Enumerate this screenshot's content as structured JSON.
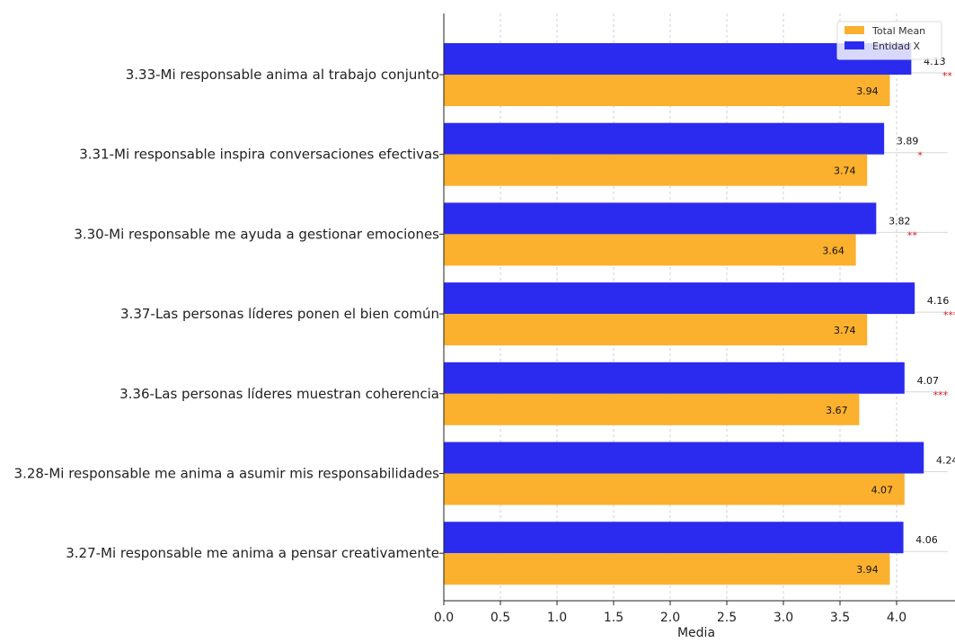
{
  "chart_data": {
    "type": "bar",
    "orientation": "horizontal",
    "xlabel": "Media",
    "ylabel": "",
    "xlim": [
      0,
      4.45
    ],
    "xticks": [
      "0.0",
      "0.5",
      "1.0",
      "1.5",
      "2.0",
      "2.5",
      "3.0",
      "3.5",
      "4.0"
    ],
    "grid": "vertical dashed",
    "legend_position": "top-right",
    "categories": [
      "3.33-Mi responsable anima al trabajo conjunto",
      "3.31-Mi responsable inspira conversaciones efectivas",
      "3.30-Mi responsable me ayuda a gestionar emociones",
      "3.37-Las personas líderes ponen el bien común",
      "3.36-Las personas líderes muestran coherencia",
      "3.28-Mi responsable me anima a asumir mis responsabilidades",
      "3.27-Mi responsable me anima a pensar creativamente"
    ],
    "series": [
      {
        "name": "Entidad X",
        "color": "#2b2bf0",
        "values": [
          4.13,
          3.89,
          3.82,
          4.16,
          4.07,
          4.24,
          4.06
        ],
        "labels": [
          "4.13",
          "3.89",
          "3.82",
          "4.16",
          "4.07",
          "4.24",
          "4.06"
        ],
        "significance": [
          "**",
          "*",
          "**",
          "***",
          "***",
          "*",
          ""
        ]
      },
      {
        "name": "Total Mean",
        "color": "#fbb02e",
        "values": [
          3.94,
          3.74,
          3.64,
          3.74,
          3.67,
          4.07,
          3.94
        ],
        "labels": [
          "3.94",
          "3.74",
          "3.64",
          "3.74",
          "3.67",
          "4.07",
          "3.94"
        ]
      }
    ]
  }
}
